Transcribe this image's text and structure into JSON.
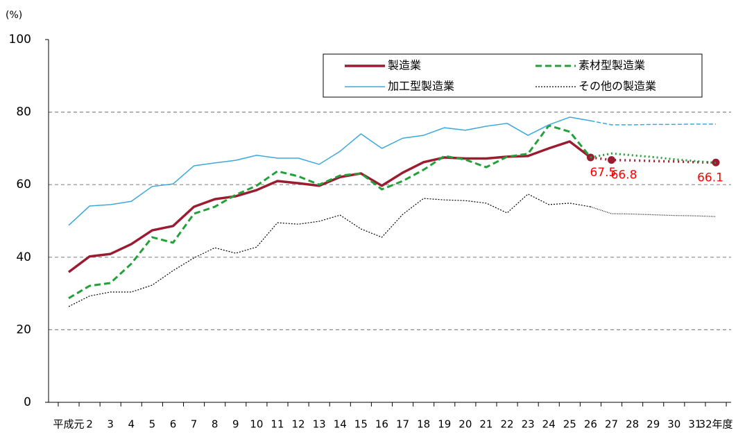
{
  "chart_data": {
    "type": "line",
    "y_unit_label": "(%)",
    "categories": [
      "平成元",
      "2",
      "3",
      "4",
      "5",
      "6",
      "7",
      "8",
      "9",
      "10",
      "11",
      "12",
      "13",
      "14",
      "15",
      "16",
      "17",
      "18",
      "19",
      "20",
      "21",
      "22",
      "23",
      "24",
      "25",
      "26",
      "27",
      "28",
      "29",
      "30",
      "31",
      "32年度"
    ],
    "ylim": [
      0,
      100
    ],
    "yticks": [
      0,
      20,
      40,
      60,
      80,
      100
    ],
    "grid": true,
    "forecast_start_index": 25,
    "legend_position": "upper right",
    "series": [
      {
        "name": "製造業",
        "color": "#9b1b30",
        "line_style": "solid",
        "width": 3.5,
        "values": [
          35.9,
          40.2,
          40.9,
          43.6,
          47.4,
          48.6,
          53.9,
          56.0,
          56.8,
          58.5,
          61.0,
          60.4,
          59.7,
          62.1,
          63.1,
          59.7,
          63.3,
          66.2,
          67.5,
          67.2,
          67.2,
          67.7,
          67.9,
          70.0,
          71.9,
          67.5,
          66.8,
          66.7,
          66.5,
          66.4,
          66.2,
          66.1
        ],
        "data_labels": [
          null,
          null,
          null,
          null,
          null,
          null,
          null,
          null,
          null,
          null,
          null,
          null,
          null,
          null,
          null,
          null,
          null,
          null,
          null,
          null,
          null,
          null,
          null,
          null,
          null,
          67.5,
          66.8,
          null,
          null,
          null,
          null,
          66.1
        ],
        "data_label_color": "#ff0000"
      },
      {
        "name": "素材型製造業",
        "color": "#22a03a",
        "line_style": "dashed",
        "width": 3,
        "values": [
          28.7,
          32.1,
          32.9,
          38.2,
          45.5,
          44.0,
          52.0,
          53.9,
          57.2,
          59.7,
          63.7,
          62.3,
          60.0,
          62.5,
          63.1,
          58.7,
          61.0,
          64.1,
          67.9,
          66.9,
          64.8,
          67.7,
          68.5,
          76.3,
          74.6,
          67.5,
          68.6,
          68.1,
          67.6,
          67.0,
          66.5,
          66.0
        ]
      },
      {
        "name": "加工型製造業",
        "color": "#3aa8dc",
        "line_style": "solid",
        "width": 1.5,
        "values": [
          48.8,
          54.1,
          54.5,
          55.4,
          59.5,
          60.2,
          65.2,
          66.0,
          66.7,
          68.1,
          67.3,
          67.3,
          65.6,
          69.2,
          74.0,
          70.0,
          72.8,
          73.6,
          75.7,
          75.0,
          76.1,
          76.9,
          73.6,
          76.5,
          78.6,
          77.6,
          76.5,
          76.5,
          76.6,
          76.6,
          76.7,
          76.7
        ]
      },
      {
        "name": "その他の製造業",
        "color": "#000000",
        "line_style": "dotted",
        "width": 1.2,
        "values": [
          26.4,
          29.3,
          30.4,
          30.4,
          32.3,
          36.3,
          39.8,
          42.6,
          41.1,
          42.8,
          49.5,
          49.1,
          49.9,
          51.6,
          47.8,
          45.5,
          51.8,
          56.2,
          55.8,
          55.6,
          54.9,
          52.2,
          57.4,
          54.5,
          54.9,
          53.9,
          52.0,
          51.9,
          51.7,
          51.5,
          51.4,
          51.2
        ]
      }
    ]
  }
}
